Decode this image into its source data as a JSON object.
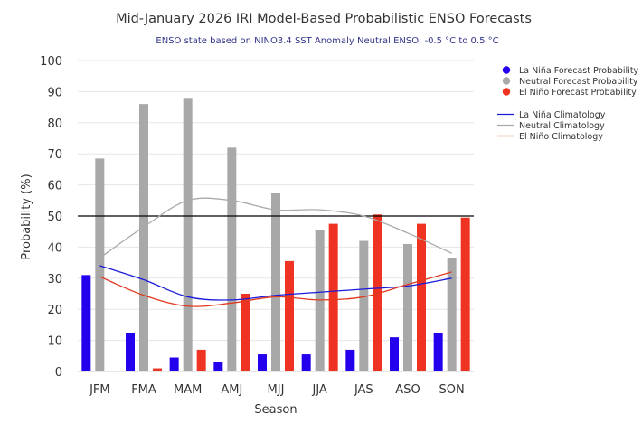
{
  "chart_data": {
    "type": "bar",
    "title": "Mid-January 2026 IRI Model-Based Probabilistic ENSO Forecasts",
    "subtitle": "ENSO state based on NINO3.4 SST Anomaly Neutral ENSO: -0.5 °C to 0.5 °C",
    "xlabel": "Season",
    "ylabel": "Probability (%)",
    "ylim": [
      0,
      100
    ],
    "yticks": [
      0,
      10,
      20,
      30,
      40,
      50,
      60,
      70,
      80,
      90,
      100
    ],
    "reference_line": 50,
    "grid": true,
    "legend_position": "top-right",
    "categories": [
      "JFM",
      "FMA",
      "MAM",
      "AMJ",
      "MJJ",
      "JJA",
      "JAS",
      "ASO",
      "SON"
    ],
    "series": [
      {
        "name": "La Niña Forecast Probability",
        "kind": "bar",
        "color": "#2200ee",
        "values": [
          31,
          12.5,
          4.5,
          3,
          5.5,
          5.5,
          7,
          11,
          12.5
        ]
      },
      {
        "name": "Neutral Forecast Probability",
        "kind": "bar",
        "color": "#a8a8a8",
        "values": [
          68.5,
          86,
          88,
          72,
          57.5,
          45.5,
          42,
          41,
          36.5
        ]
      },
      {
        "name": "El Niño Forecast Probability",
        "kind": "bar",
        "color": "#ee3322",
        "values": [
          0,
          1,
          7,
          25,
          35.5,
          47.5,
          50.5,
          47.5,
          49.5
        ]
      },
      {
        "name": "La Niña Climatology",
        "kind": "line",
        "color": "#1a1adb",
        "values": [
          34,
          29.5,
          24,
          23,
          24.5,
          25.5,
          26.5,
          27.5,
          30
        ]
      },
      {
        "name": "Neutral Climatology",
        "kind": "line",
        "color": "#aaaaaa",
        "values": [
          36.5,
          46.5,
          55,
          55,
          52,
          52,
          50,
          44.5,
          38
        ]
      },
      {
        "name": "El Niño Climatology",
        "kind": "line",
        "color": "#e03a1e",
        "values": [
          30.5,
          24.5,
          21,
          22,
          24,
          23,
          24,
          28,
          32
        ]
      }
    ]
  }
}
